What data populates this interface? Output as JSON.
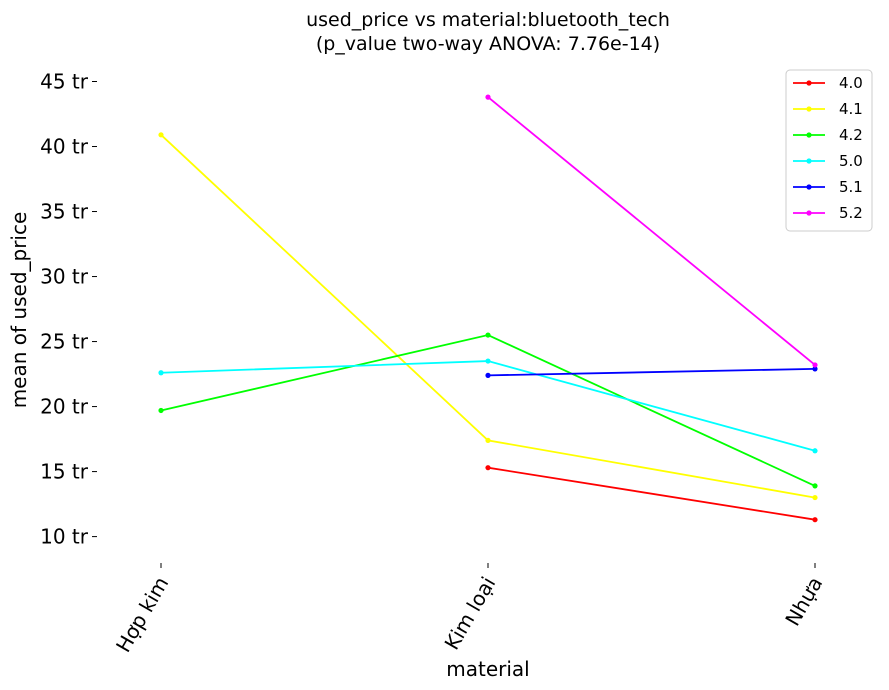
{
  "chart_data": {
    "type": "line",
    "title": "used_price vs material:bluetooth_tech",
    "subtitle": "(p_value two-way ANOVA: 7.76e-14)",
    "xlabel": "material",
    "ylabel": "mean of used_price",
    "categories": [
      "Hợp kim",
      "Kim loại",
      "Nhựa"
    ],
    "y_ticks": [
      10,
      15,
      20,
      25,
      30,
      35,
      40,
      45
    ],
    "y_tick_suffix": " tr",
    "ylim": [
      8.2,
      46.5
    ],
    "grid": false,
    "legend_position": "top-right",
    "series": [
      {
        "name": "4.0",
        "color": "#ff0000",
        "values": [
          null,
          15.3,
          11.3
        ]
      },
      {
        "name": "4.1",
        "color": "#ffff00",
        "values": [
          40.9,
          17.4,
          13.0
        ]
      },
      {
        "name": "4.2",
        "color": "#00ff00",
        "values": [
          19.7,
          25.5,
          13.9
        ]
      },
      {
        "name": "5.0",
        "color": "#00ffff",
        "values": [
          22.6,
          23.5,
          16.6
        ]
      },
      {
        "name": "5.1",
        "color": "#0000ff",
        "values": [
          null,
          22.4,
          22.9
        ]
      },
      {
        "name": "5.2",
        "color": "#ff00ff",
        "values": [
          null,
          43.8,
          23.2
        ]
      }
    ]
  }
}
